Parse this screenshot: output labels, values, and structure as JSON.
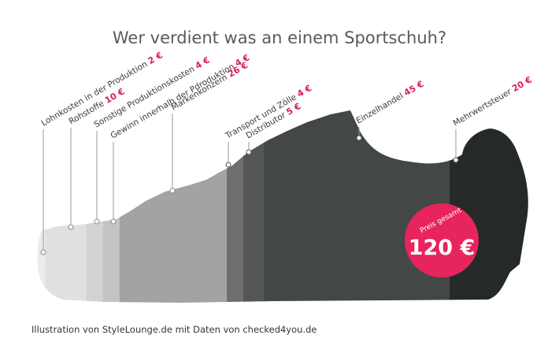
{
  "title": "Wer verdient was an einem Sportschuh?",
  "credit": "Illustration von StyleLounge.de mit Daten von checked4you.de",
  "badge": {
    "label": "Preis gesamt",
    "total": "120 €",
    "color": "#e8245c"
  },
  "chart_data": {
    "type": "bar",
    "title": "Wer verdient was an einem Sportschuh?",
    "unit": "€",
    "total": 120,
    "categories": [
      "Lohnkosten in der Produktion",
      "Rohstoffe",
      "Sonstige Produktionskosten",
      "Gewinn innerhalb der Pdroduktion",
      "Markenkonzern",
      "Transport und Zölle",
      "Distributor",
      "Einzelhandel",
      "Mehrwertsteuer"
    ],
    "values": [
      2,
      10,
      4,
      4,
      26,
      4,
      5,
      45,
      20
    ],
    "value_labels": [
      "2 €",
      "10 €",
      "4 €",
      "4 €",
      "26 €",
      "4 €",
      "5 €",
      "45 €",
      "20 €"
    ],
    "colors": [
      "#ebebeb",
      "#e0e0e0",
      "#d2d2d2",
      "#c4c4c4",
      "#a3a3a3",
      "#6e6e6e",
      "#545654",
      "#434745",
      "#252a28"
    ]
  }
}
